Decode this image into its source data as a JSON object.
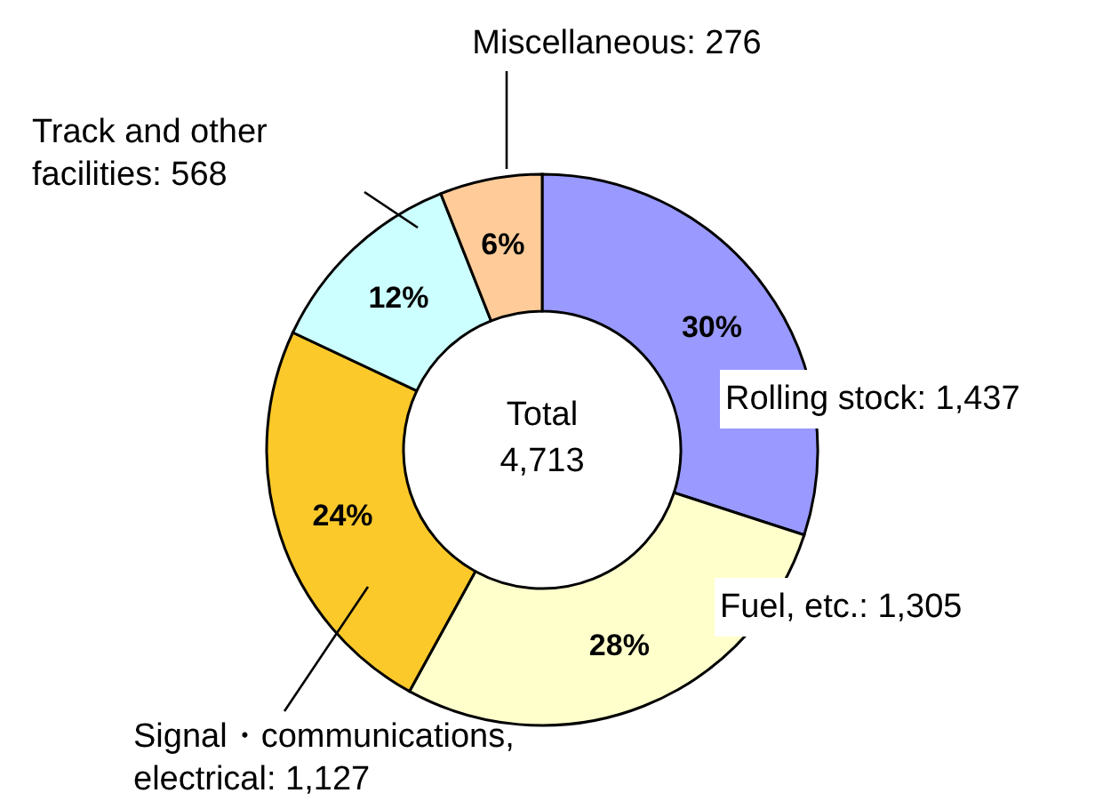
{
  "chart_data": {
    "type": "donut",
    "categories": [
      "Rolling stock: 1,437",
      "Fuel, etc.: 1,305",
      "Signal・communications, electrical: 1,127",
      "Track and other facilities: 568",
      "Miscellaneous: 276"
    ],
    "values": [
      30,
      28,
      24,
      12,
      6
    ],
    "data_labels": true,
    "colors": [
      "#9999ff",
      "#ffffcc",
      "#fbc92a",
      "#ccffff",
      "#ffcc99"
    ],
    "value_labels": [
      "30%",
      "28%",
      "24%",
      "12%",
      "6%"
    ],
    "annotations": [
      "Total",
      "4,713"
    ],
    "legend": false
  }
}
